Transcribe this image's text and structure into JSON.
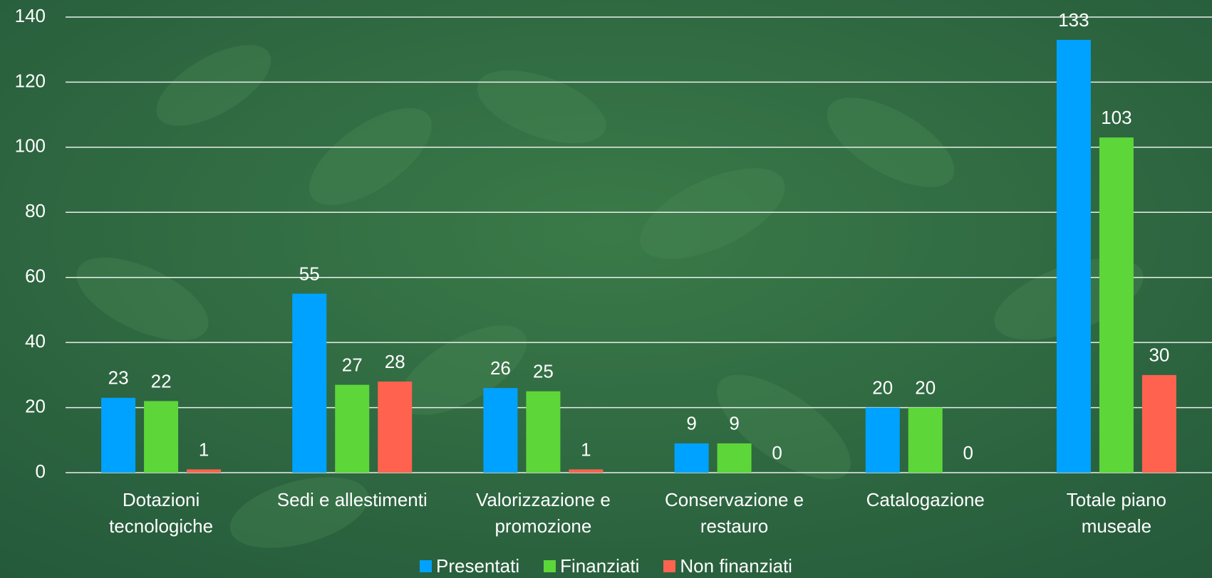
{
  "chart_data": {
    "type": "bar",
    "categories": [
      "Dotazioni\ntecnologiche",
      "Sedi e allestimenti",
      "Valorizzazione e\npromozione",
      "Conservazione e\nrestauro",
      "Catalogazione",
      "Totale piano\nmuseale"
    ],
    "series": [
      {
        "name": "Presentati",
        "color": "#00a2ff",
        "values": [
          23,
          55,
          26,
          9,
          20,
          133
        ]
      },
      {
        "name": "Finanziati",
        "color": "#5dd63a",
        "values": [
          22,
          27,
          25,
          9,
          20,
          103
        ]
      },
      {
        "name": "Non finanziati",
        "color": "#ff6350",
        "values": [
          1,
          28,
          1,
          0,
          0,
          30
        ]
      }
    ],
    "ylim": [
      0,
      140
    ],
    "yticks": [
      0,
      20,
      40,
      60,
      80,
      100,
      120,
      140
    ],
    "grid": true,
    "legend": "bottom"
  }
}
